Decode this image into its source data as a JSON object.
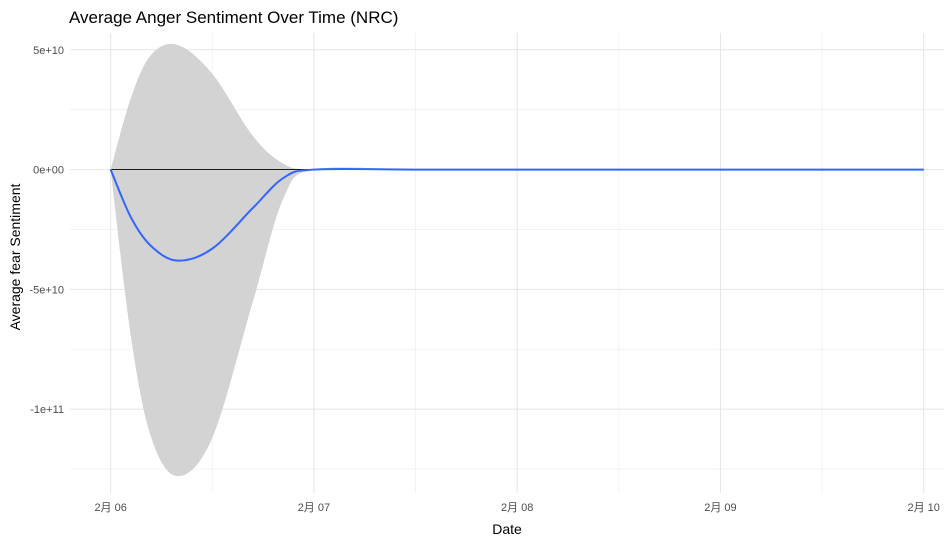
{
  "chart_data": {
    "type": "line",
    "title": "Average Anger Sentiment Over Time (NRC)",
    "xlabel": "Date",
    "ylabel": "Average fear Sentiment",
    "x_ticks": [
      "2月 06",
      "2月 07",
      "2月 08",
      "2月 09",
      "2月 10"
    ],
    "y_ticks": [
      {
        "value": 50000000000,
        "label": "5e+10"
      },
      {
        "value": 0,
        "label": "0e+00"
      },
      {
        "value": -50000000000,
        "label": "-5e+10"
      },
      {
        "value": -100000000000,
        "label": "-1e+11"
      }
    ],
    "xlim": [
      -0.2,
      4.1
    ],
    "ylim": [
      -135000000000,
      57000000000
    ],
    "grid": true,
    "legend": "none",
    "colors": {
      "smooth": "#3366ff",
      "ribbon": "#d3d3d3",
      "raw": "#000000"
    },
    "series": [
      {
        "kind": "smooth",
        "x": [
          0,
          0.1,
          0.2,
          0.33,
          0.5,
          0.7,
          0.85,
          1.0,
          1.5,
          2.0,
          2.5,
          3.0,
          3.5,
          4.0
        ],
        "y": [
          0,
          -20000000000,
          -32000000000,
          -38000000000,
          -33000000000,
          -16000000000,
          -3500000000,
          0,
          0,
          0,
          0,
          0,
          0,
          0
        ],
        "upper": [
          0,
          30000000000,
          48000000000,
          52000000000,
          40000000000,
          14000000000,
          2500000000,
          0,
          0,
          0,
          0,
          0,
          0,
          0
        ],
        "lower": [
          0,
          -70000000000,
          -112000000000,
          -128000000000,
          -112000000000,
          -55000000000,
          -12000000000,
          0,
          0,
          0,
          0,
          0,
          0,
          0
        ]
      },
      {
        "kind": "raw",
        "x": [
          0,
          1.0,
          2.0,
          3.0,
          4.0
        ],
        "y": [
          0,
          0,
          0,
          0,
          0
        ]
      }
    ]
  }
}
